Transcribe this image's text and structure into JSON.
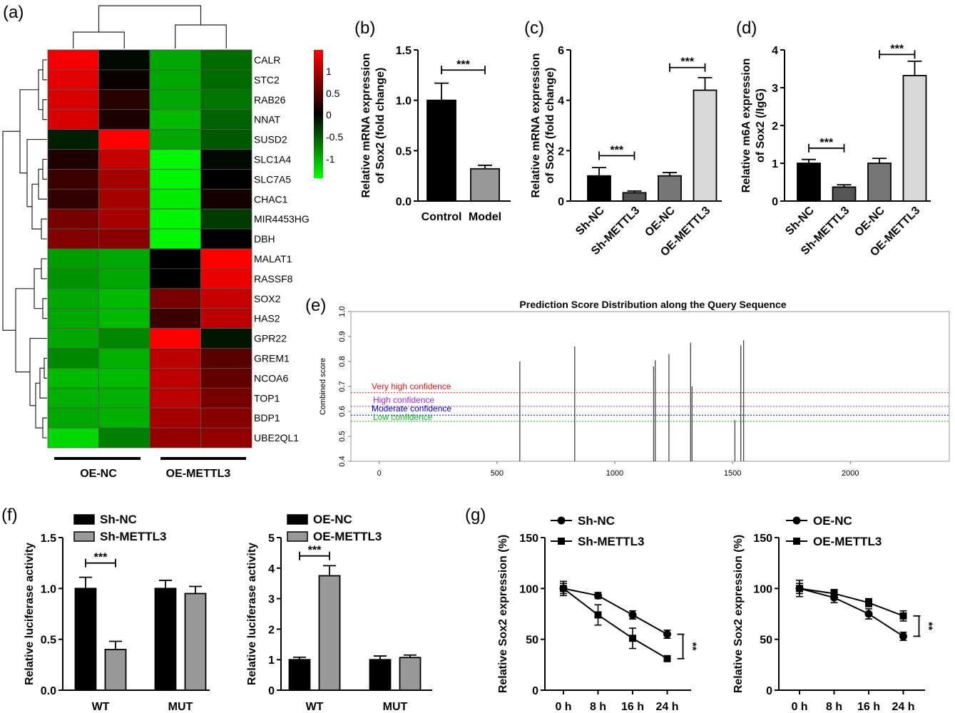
{
  "panel_labels": [
    "(a)",
    "(b)",
    "(c)",
    "(d)",
    "(e)",
    "(f)",
    "(g)"
  ],
  "chart_data": [
    {
      "id": "a",
      "type": "heatmap",
      "rows": [
        "CALR",
        "STC2",
        "RAB26",
        "NNAT",
        "SUSD2",
        "SLC1A4",
        "SLC7A5",
        "CHAC1",
        "MIR4453HG",
        "DBH",
        "MALAT1",
        "RASSF8",
        "SOX2",
        "HAS2",
        "GPR22",
        "GREM1",
        "NCOA6",
        "TOP1",
        "BDP1",
        "UBE2QL1"
      ],
      "values": [
        [
          1.25,
          -0.05,
          -0.85,
          -0.55
        ],
        [
          1.15,
          0.05,
          -0.85,
          -0.55
        ],
        [
          1.1,
          0.2,
          -0.85,
          -0.6
        ],
        [
          1.1,
          0.15,
          -0.95,
          -0.5
        ],
        [
          -0.15,
          1.3,
          -0.85,
          -0.45
        ],
        [
          0.15,
          1.0,
          -1.25,
          -0.05
        ],
        [
          0.3,
          0.85,
          -1.25,
          0.0
        ],
        [
          0.25,
          0.85,
          -1.2,
          0.1
        ],
        [
          0.6,
          0.85,
          -1.25,
          -0.3
        ],
        [
          0.65,
          0.7,
          -1.25,
          0.0
        ],
        [
          -0.8,
          -0.85,
          0.0,
          1.3
        ],
        [
          -0.75,
          -0.85,
          0.0,
          1.2
        ],
        [
          -0.85,
          -0.95,
          0.6,
          1.0
        ],
        [
          -0.85,
          -0.95,
          0.3,
          0.95
        ],
        [
          -0.85,
          -0.7,
          1.3,
          -0.1
        ],
        [
          -0.7,
          -0.9,
          0.95,
          0.45
        ],
        [
          -0.95,
          -0.95,
          0.95,
          0.5
        ],
        [
          -0.9,
          -0.9,
          0.95,
          0.6
        ],
        [
          -0.85,
          -0.9,
          0.85,
          0.7
        ],
        [
          -1.1,
          -0.65,
          0.75,
          0.75
        ]
      ],
      "groups": [
        "OE-NC",
        "OE-METTL3"
      ],
      "legend_ticks": [
        "1",
        "0.5",
        "0",
        "-0.5",
        "-1"
      ],
      "colors": {
        "high": "#ff0000",
        "mid": "#000000",
        "low": "#00ff00"
      }
    },
    {
      "id": "b",
      "type": "bar",
      "ylabel": [
        "Relative mRNA expression",
        "of Sox2 (fold change)"
      ],
      "ylim": [
        0,
        1.5
      ],
      "yticks": [
        "0.0",
        "0.5",
        "1.0",
        "1.5"
      ],
      "categories": [
        "Control",
        "Model"
      ],
      "values": [
        1.0,
        0.32
      ],
      "errors": [
        0.17,
        0.035
      ],
      "colors": [
        "#000000",
        "#999999"
      ],
      "significance": "***"
    },
    {
      "id": "c",
      "type": "bar",
      "ylabel": [
        "Relative mRNA expression",
        "of Sox2 (fold change)"
      ],
      "ylim": [
        0,
        6
      ],
      "yticks": [
        "0",
        "2",
        "4",
        "6"
      ],
      "categories": [
        "Sh-NC",
        "Sh-METTL3",
        "OE-NC",
        "OE-METTL3"
      ],
      "values": [
        1.0,
        0.33,
        1.0,
        4.4
      ],
      "errors": [
        0.33,
        0.07,
        0.13,
        0.5
      ],
      "colors": [
        "#000000",
        "#555555",
        "#777777",
        "#d9d9d9"
      ],
      "significance": "***"
    },
    {
      "id": "d",
      "type": "bar",
      "ylabel": [
        "Relative m6A expression",
        "of Sox2 (/IgG)"
      ],
      "ylim": [
        0,
        4
      ],
      "yticks": [
        "0",
        "1",
        "2",
        "3",
        "4"
      ],
      "categories": [
        "Sh-NC",
        "Sh-METTL3",
        "OE-NC",
        "OE-METTL3"
      ],
      "values": [
        1.0,
        0.37,
        1.0,
        3.32
      ],
      "errors": [
        0.1,
        0.06,
        0.13,
        0.38
      ],
      "colors": [
        "#000000",
        "#555555",
        "#777777",
        "#d9d9d9"
      ],
      "significance": "***"
    },
    {
      "id": "e",
      "type": "line",
      "title": "Prediction Score Distribution along the Query Sequence",
      "ylabel": "Combined score",
      "xlim": [
        -120,
        2420
      ],
      "ylim": [
        0.4,
        1.0
      ],
      "xticks": [
        "0",
        "500",
        "1000",
        "1500",
        "2000"
      ],
      "yticks": [
        "0.4",
        "0.5",
        "0.6",
        "0.7",
        "0.8",
        "0.9",
        "1.0"
      ],
      "thresholds": [
        {
          "label": "Very high confidence",
          "value": 0.675,
          "color": "#e8141b"
        },
        {
          "label": "High confidence",
          "value": 0.62,
          "color": "#a020f0"
        },
        {
          "label": "Moderate confidence",
          "value": 0.585,
          "color": "#0000e8"
        },
        {
          "label": "Low confidence",
          "value": 0.56,
          "color": "#00c000"
        }
      ],
      "spikes": [
        {
          "x": 597,
          "y": 0.8
        },
        {
          "x": 830,
          "y": 0.86
        },
        {
          "x": 1165,
          "y": 0.78
        },
        {
          "x": 1172,
          "y": 0.805
        },
        {
          "x": 1230,
          "y": 0.83
        },
        {
          "x": 1322,
          "y": 0.875
        },
        {
          "x": 1328,
          "y": 0.7
        },
        {
          "x": 1510,
          "y": 0.565
        },
        {
          "x": 1535,
          "y": 0.865
        },
        {
          "x": 1547,
          "y": 0.885
        }
      ]
    },
    {
      "id": "f1",
      "type": "bar",
      "ylabel": "Relative luciferase activity",
      "ylim": [
        0,
        1.5
      ],
      "yticks": [
        "0.0",
        "0.5",
        "1.0",
        "1.5"
      ],
      "categories": [
        "WT",
        "MUT"
      ],
      "series": [
        {
          "name": "Sh-NC",
          "values": [
            1.0,
            1.0
          ],
          "errors": [
            0.11,
            0.08
          ],
          "color": "#000000"
        },
        {
          "name": "Sh-METTL3",
          "values": [
            0.4,
            0.95
          ],
          "errors": [
            0.08,
            0.07
          ],
          "color": "#999999"
        }
      ],
      "significance": "***"
    },
    {
      "id": "f2",
      "type": "bar",
      "ylabel": "Relative luciferase activity",
      "ylim": [
        0,
        5
      ],
      "yticks": [
        "0",
        "1",
        "2",
        "3",
        "4",
        "5"
      ],
      "categories": [
        "WT",
        "MUT"
      ],
      "series": [
        {
          "name": "OE-NC",
          "values": [
            1.0,
            1.0
          ],
          "errors": [
            0.08,
            0.12
          ],
          "color": "#000000"
        },
        {
          "name": "OE-METTL3",
          "values": [
            3.75,
            1.07
          ],
          "errors": [
            0.33,
            0.08
          ],
          "color": "#999999"
        }
      ],
      "significance": "***"
    },
    {
      "id": "g1",
      "type": "line",
      "ylabel": "Relative Sox2 expression (%)",
      "ylim": [
        0,
        150
      ],
      "yticks": [
        "0",
        "50",
        "100",
        "150"
      ],
      "x": [
        "0 h",
        "8 h",
        "16 h",
        "24 h"
      ],
      "series": [
        {
          "name": "Sh-NC",
          "marker": "circle",
          "values": [
            100,
            93,
            74,
            55
          ],
          "errors": [
            7,
            3,
            4,
            4
          ]
        },
        {
          "name": "Sh-METTL3",
          "marker": "square",
          "values": [
            100,
            74,
            51,
            31
          ],
          "errors": [
            5,
            10,
            10,
            2
          ]
        }
      ],
      "significance": "**"
    },
    {
      "id": "g2",
      "type": "line",
      "ylabel": "Relative Sox2 expression (%)",
      "ylim": [
        0,
        150
      ],
      "yticks": [
        "0",
        "50",
        "100",
        "150"
      ],
      "x": [
        "0 h",
        "8 h",
        "16 h",
        "24 h"
      ],
      "series": [
        {
          "name": "OE-NC",
          "marker": "circle",
          "values": [
            100,
            91,
            75,
            53
          ],
          "errors": [
            8,
            5,
            5,
            4
          ]
        },
        {
          "name": "OE-METTL3",
          "marker": "square",
          "values": [
            100,
            95,
            86,
            73
          ],
          "errors": [
            5,
            4,
            4,
            5
          ]
        }
      ],
      "significance": "**"
    }
  ]
}
